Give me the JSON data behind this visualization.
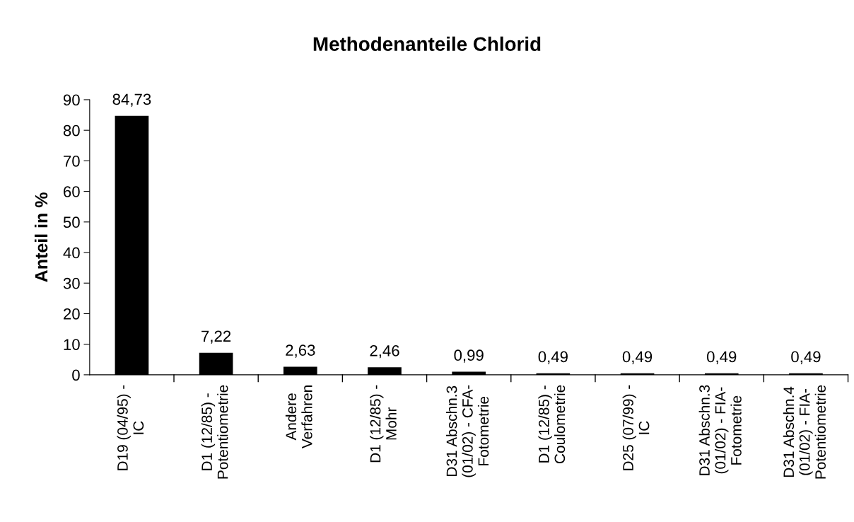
{
  "chart_data": {
    "type": "bar",
    "title": "Methodenanteile Chlorid",
    "ylabel": "Anteil in %",
    "categories": [
      "D19 (04/95) -\nIC",
      "D1 (12/85) -\nPotentiometrie",
      "Andere\nVerfahren",
      "D1 (12/85) -\nMohr",
      "D31 Abschn.3\n(01/02) - CFA-\nFotometrie",
      "D1 (12/85) -\nCoulometrie",
      "D25 (07/99) -\nIC",
      "D31 Abschn.3\n(01/02) - FIA-\nFotometrie",
      "D31 Abschn.4\n(01/02) - FIA-\nPotentiometrie"
    ],
    "values": [
      84.73,
      7.22,
      2.63,
      2.46,
      0.99,
      0.49,
      0.49,
      0.49,
      0.49
    ],
    "value_labels": [
      "84,73",
      "7,22",
      "2,63",
      "2,46",
      "0,99",
      "0,49",
      "0,49",
      "0,49",
      "0,49"
    ],
    "color": "#000000",
    "ylim": [
      0,
      90
    ],
    "yticks": [
      0,
      10,
      20,
      30,
      40,
      50,
      60,
      70,
      80,
      90
    ],
    "grid": false,
    "legend": false
  }
}
